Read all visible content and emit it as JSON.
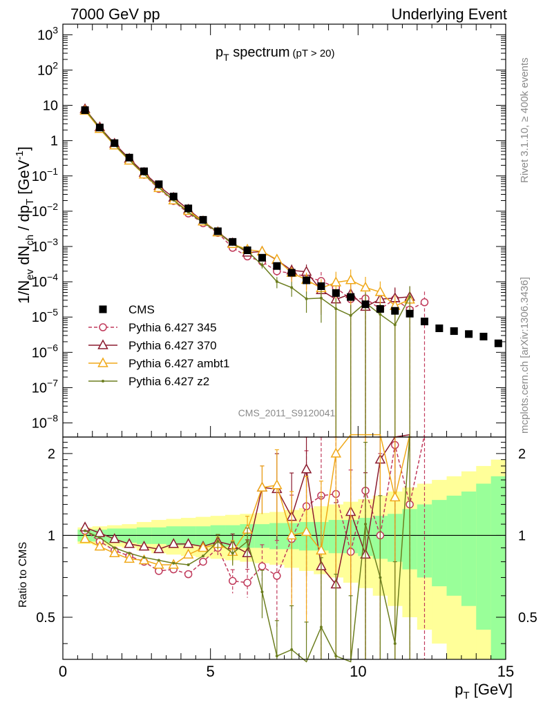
{
  "header": {
    "left": "7000 GeV pp",
    "right": "Underlying Event"
  },
  "side": {
    "rivet": "Rivet 3.1.10, ≥ 400k events",
    "mcplots": "mcplots.cern.ch [arXiv:1306.3436]"
  },
  "chart_data": {
    "type": "line",
    "title_main": "p",
    "title_sub": "T",
    "title_rest": " spectrum",
    "title_cut": "(pT > 20)",
    "watermark": "CMS_2011_S9120041",
    "ylabel_upper": "1/N",
    "ylabel_ev": "ev",
    "ylabel_dn": " dN",
    "ylabel_ch": "ch",
    "ylabel_dp": " / dp",
    "ylabel_t": "T",
    "ylabel_unit": " [GeV",
    "ylabel_exp": "-1",
    "ylabel_close": "]",
    "ylabel_lower": "Ratio to CMS",
    "xlabel_p": "p",
    "xlabel_t": "T",
    "xlabel_unit": " [GeV]",
    "xlim": [
      0,
      15
    ],
    "ylim_upper_log10": [
      -8.4,
      3.3
    ],
    "ylim_lower": [
      0.35,
      2.3
    ],
    "yscale_upper": "log",
    "yscale_lower": "log",
    "x_ticks": [
      "0",
      "5",
      "10",
      "15"
    ],
    "upper_ticks": [
      {
        "mant": "10",
        "exp": "3",
        "log": 3
      },
      {
        "mant": "10",
        "exp": "2",
        "log": 2
      },
      {
        "mant": "10",
        "exp": "",
        "log": 1
      },
      {
        "mant": "1",
        "exp": "",
        "log": 0
      },
      {
        "mant": "10",
        "exp": "−1",
        "log": -1
      },
      {
        "mant": "10",
        "exp": "−2",
        "log": -2
      },
      {
        "mant": "10",
        "exp": "−3",
        "log": -3
      },
      {
        "mant": "10",
        "exp": "−4",
        "log": -4
      },
      {
        "mant": "10",
        "exp": "−5",
        "log": -5
      },
      {
        "mant": "10",
        "exp": "−6",
        "log": -6
      },
      {
        "mant": "10",
        "exp": "−7",
        "log": -7
      },
      {
        "mant": "10",
        "exp": "−8",
        "log": -8
      }
    ],
    "lower_ticks": [
      "2",
      "1",
      "0.5"
    ],
    "x": [
      0.75,
      1.25,
      1.75,
      2.25,
      2.75,
      3.25,
      3.75,
      4.25,
      4.75,
      5.25,
      5.75,
      6.25,
      6.75,
      7.25,
      7.75,
      8.25,
      8.75,
      9.25,
      9.75,
      10.25,
      10.75,
      11.25,
      11.75,
      12.25,
      12.75,
      13.25,
      13.75,
      14.25,
      14.75
    ],
    "cms": [
      7.3,
      2.35,
      0.85,
      0.33,
      0.135,
      0.058,
      0.026,
      0.012,
      0.0057,
      0.0027,
      0.00135,
      0.00078,
      0.00048,
      0.00028,
      0.00018,
      0.00011,
      7.5e-05,
      4.8e-05,
      3.7e-05,
      2.3e-05,
      1.7e-05,
      1.5e-05,
      1.25e-05,
      7.5e-06,
      4.8e-06,
      4e-06,
      3.3e-06,
      2.8e-06,
      1.8e-06
    ],
    "cms_band_inner": [
      0.05,
      0.05,
      0.06,
      0.06,
      0.07,
      0.07,
      0.08,
      0.08,
      0.08,
      0.09,
      0.09,
      0.1,
      0.1,
      0.11,
      0.11,
      0.12,
      0.12,
      0.14,
      0.14,
      0.16,
      0.18,
      0.2,
      0.25,
      0.3,
      0.35,
      0.4,
      0.45,
      0.55,
      0.65
    ],
    "cms_band_outer": [
      0.07,
      0.08,
      0.09,
      0.1,
      0.12,
      0.14,
      0.15,
      0.16,
      0.17,
      0.18,
      0.19,
      0.2,
      0.21,
      0.22,
      0.24,
      0.26,
      0.28,
      0.3,
      0.33,
      0.36,
      0.4,
      0.45,
      0.5,
      0.55,
      0.6,
      0.65,
      0.72,
      0.8,
      0.9
    ],
    "series": [
      {
        "name": "Pythia 6.427 345",
        "color": "#c0395a",
        "marker": "circle",
        "dashed": true,
        "ratio": [
          1.04,
          0.95,
          0.88,
          0.84,
          0.8,
          0.74,
          0.75,
          0.72,
          0.8,
          0.9,
          0.68,
          0.67,
          0.77,
          0.71,
          0.97,
          1.28,
          1.4,
          1.42,
          0.87,
          1.46,
          1.0,
          2.15,
          1.3,
          3.5,
          null,
          null,
          null,
          null,
          null
        ],
        "err": [
          0.01,
          0.01,
          0.01,
          0.01,
          0.02,
          0.02,
          0.02,
          0.03,
          0.04,
          0.06,
          0.1,
          0.12,
          0.2,
          0.35,
          0.45,
          0.6,
          0.8,
          1.0,
          1.0,
          1.0,
          1.0,
          1.0,
          1.0,
          1.0,
          null,
          null,
          null,
          null,
          null
        ]
      },
      {
        "name": "Pythia 6.427 370",
        "color": "#8b1a2e",
        "marker": "triangle",
        "dashed": false,
        "ratio": [
          1.07,
          1.02,
          0.97,
          0.93,
          0.91,
          0.89,
          0.93,
          0.93,
          0.91,
          0.95,
          0.92,
          0.86,
          1.5,
          1.48,
          1.17,
          1.75,
          0.77,
          0.66,
          1.22,
          0.85,
          1.9,
          2.3,
          3.0,
          null,
          null,
          null,
          null,
          null,
          null
        ],
        "err": [
          0.01,
          0.01,
          0.01,
          0.01,
          0.02,
          0.02,
          0.02,
          0.03,
          0.04,
          0.06,
          0.1,
          0.12,
          0.2,
          0.35,
          0.45,
          0.6,
          0.8,
          1.0,
          1.0,
          1.0,
          1.0,
          1.0,
          1.0,
          null,
          null,
          null,
          null,
          null,
          null
        ]
      },
      {
        "name": "Pythia 6.427 ambt1",
        "color": "#f0a818",
        "marker": "triangle",
        "dashed": false,
        "ratio": [
          0.97,
          0.91,
          0.86,
          0.82,
          0.81,
          0.78,
          0.78,
          0.85,
          0.9,
          0.93,
          0.87,
          1.05,
          1.5,
          1.53,
          1.0,
          1.03,
          0.88,
          2.0,
          3.0,
          3.0,
          3.0,
          1.38,
          2.5,
          null,
          null,
          null,
          null,
          null,
          null
        ],
        "err": [
          0.01,
          0.01,
          0.01,
          0.01,
          0.02,
          0.02,
          0.02,
          0.03,
          0.04,
          0.06,
          0.1,
          0.12,
          0.2,
          0.35,
          0.45,
          0.6,
          0.8,
          1.0,
          1.0,
          1.0,
          1.0,
          1.0,
          1.0,
          null,
          null,
          null,
          null,
          null,
          null
        ]
      },
      {
        "name": "Pythia 6.427 z2",
        "color": "#6b7d1e",
        "marker": "point",
        "dashed": false,
        "ratio": [
          1.04,
          0.98,
          0.9,
          0.86,
          0.83,
          0.81,
          0.79,
          0.78,
          0.84,
          0.95,
          0.86,
          0.95,
          0.62,
          0.36,
          0.38,
          0.3,
          0.46,
          0.36,
          0.3,
          1.1,
          0.7,
          0.4,
          3.0,
          null,
          null,
          null,
          null,
          null,
          null
        ],
        "err": [
          0.01,
          0.01,
          0.01,
          0.01,
          0.02,
          0.02,
          0.02,
          0.03,
          0.04,
          0.06,
          0.1,
          0.12,
          0.2,
          0.35,
          0.45,
          0.6,
          0.8,
          1.0,
          1.0,
          1.0,
          1.0,
          1.0,
          1.0,
          null,
          null,
          null,
          null,
          null,
          null
        ]
      }
    ],
    "legend_cms": "CMS",
    "legend_position": "lower-left",
    "colors": {
      "cms": "#000000",
      "band_inner": "#99ff99",
      "band_outer": "#ffff99"
    }
  }
}
